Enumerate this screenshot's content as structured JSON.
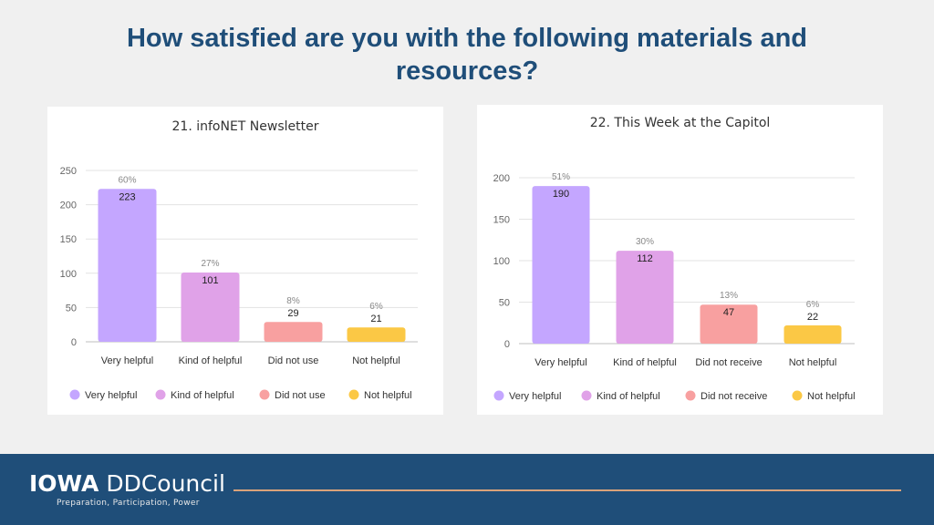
{
  "slide": {
    "title": "How satisfied are you with the following materials and resources?"
  },
  "footer": {
    "logo_left": "IOWA",
    "logo_right": "DDCouncil",
    "tagline": "Preparation, Participation, Power"
  },
  "colors": {
    "background": "#f0f0f0",
    "title": "#1f4e79",
    "footer": "#1f4e79",
    "rule": "#d9a27a",
    "very_helpful": "#c4a6ff",
    "kind_of_helpful": "#e0a2e8",
    "did_not": "#f8a0a0",
    "not_helpful": "#fbc845"
  },
  "chart_data": [
    {
      "type": "bar",
      "title": "21. infoNET Newsletter",
      "categories": [
        "Very helpful",
        "Kind of helpful",
        "Did not use",
        "Not helpful"
      ],
      "values": [
        223,
        101,
        29,
        21
      ],
      "percent_labels": [
        "60%",
        "27%",
        "8%",
        "6%"
      ],
      "colors": [
        "#c4a6ff",
        "#e0a2e8",
        "#f8a0a0",
        "#fbc845"
      ],
      "yticks": [
        0,
        50,
        100,
        150,
        200,
        250
      ],
      "ylim": [
        0,
        250
      ],
      "grid": true,
      "legend_position": "bottom",
      "legend": [
        "Very helpful",
        "Kind of helpful",
        "Did not use",
        "Not helpful"
      ]
    },
    {
      "type": "bar",
      "title": "22. This Week at the Capitol",
      "categories": [
        "Very helpful",
        "Kind of helpful",
        "Did not receive",
        "Not helpful"
      ],
      "values": [
        190,
        112,
        47,
        22
      ],
      "percent_labels": [
        "51%",
        "30%",
        "13%",
        "6%"
      ],
      "colors": [
        "#c4a6ff",
        "#e0a2e8",
        "#f8a0a0",
        "#fbc845"
      ],
      "yticks": [
        0,
        50,
        100,
        150,
        200
      ],
      "ylim": [
        0,
        200
      ],
      "grid": true,
      "legend_position": "bottom",
      "legend": [
        "Very helpful",
        "Kind of helpful",
        "Did not receive",
        "Not helpful"
      ]
    }
  ]
}
